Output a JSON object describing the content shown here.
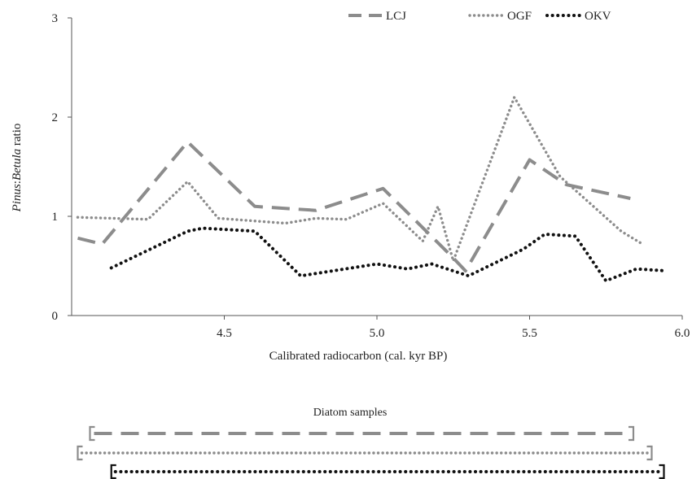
{
  "chart_data": {
    "type": "line",
    "xlabel": "Calibrated radiocarbon (cal. kyr BP)",
    "ylabel_parts": [
      "Pinus",
      ":",
      "Betula",
      " ratio"
    ],
    "xlim": [
      4.0,
      6.0
    ],
    "ylim": [
      0,
      3
    ],
    "xticks": [
      4.5,
      5.0,
      5.5,
      6.0
    ],
    "xtick_labels": [
      "4.5",
      "5.0",
      "5.5",
      "6.0"
    ],
    "yticks": [
      0,
      1,
      2,
      3
    ],
    "ytick_labels": [
      "0",
      "1",
      "2",
      "3"
    ],
    "legend_position": "top-right",
    "grid": false,
    "series": [
      {
        "name": "LCJ",
        "style": "dashed",
        "color": "#8c8c8c",
        "points": [
          [
            4.02,
            0.78
          ],
          [
            4.1,
            0.72
          ],
          [
            4.38,
            1.75
          ],
          [
            4.6,
            1.1
          ],
          [
            4.8,
            1.06
          ],
          [
            5.02,
            1.28
          ],
          [
            5.25,
            0.58
          ],
          [
            5.29,
            0.45
          ],
          [
            5.5,
            1.57
          ],
          [
            5.62,
            1.32
          ],
          [
            5.83,
            1.18
          ]
        ]
      },
      {
        "name": "OGF",
        "style": "dotted",
        "color": "#8c8c8c",
        "points": [
          [
            4.02,
            0.99
          ],
          [
            4.25,
            0.97
          ],
          [
            4.38,
            1.35
          ],
          [
            4.48,
            0.98
          ],
          [
            4.7,
            0.93
          ],
          [
            4.8,
            0.98
          ],
          [
            4.9,
            0.97
          ],
          [
            5.02,
            1.13
          ],
          [
            5.15,
            0.75
          ],
          [
            5.2,
            1.1
          ],
          [
            5.25,
            0.55
          ],
          [
            5.45,
            2.2
          ],
          [
            5.6,
            1.4
          ],
          [
            5.8,
            0.85
          ],
          [
            5.87,
            0.72
          ]
        ]
      },
      {
        "name": "OKV",
        "style": "dotted",
        "color": "#111111",
        "points": [
          [
            4.13,
            0.48
          ],
          [
            4.38,
            0.85
          ],
          [
            4.43,
            0.88
          ],
          [
            4.6,
            0.85
          ],
          [
            4.75,
            0.4
          ],
          [
            5.0,
            0.52
          ],
          [
            5.1,
            0.47
          ],
          [
            5.18,
            0.52
          ],
          [
            5.3,
            0.4
          ],
          [
            5.48,
            0.67
          ],
          [
            5.55,
            0.82
          ],
          [
            5.65,
            0.8
          ],
          [
            5.75,
            0.35
          ],
          [
            5.85,
            0.47
          ],
          [
            5.95,
            0.45
          ]
        ]
      }
    ],
    "diatom_samples": {
      "label": "Diatom samples",
      "ranges": [
        {
          "series": "LCJ",
          "start": 4.06,
          "end": 5.84
        },
        {
          "series": "OGF",
          "start": 4.02,
          "end": 5.9
        },
        {
          "series": "OKV",
          "start": 4.13,
          "end": 5.94
        }
      ]
    }
  }
}
